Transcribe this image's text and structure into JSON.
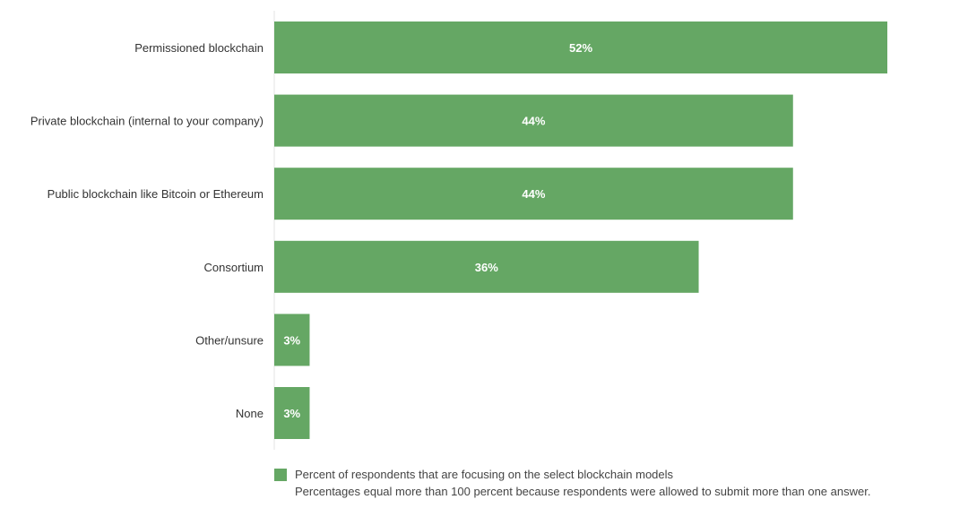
{
  "chart_data": {
    "type": "bar",
    "orientation": "horizontal",
    "categories": [
      "Permissioned blockchain",
      "Private blockchain (internal to your company)",
      "Public blockchain like Bitcoin or Ethereum",
      "Consortium",
      "Other/unsure",
      "None"
    ],
    "values": [
      52,
      44,
      44,
      36,
      3,
      3
    ],
    "data_labels": [
      "52%",
      "44%",
      "44%",
      "36%",
      "3%",
      "3%"
    ],
    "unit": "%",
    "xlim": [
      0,
      60
    ],
    "grid": false,
    "legend_position": "bottom",
    "title": "",
    "xlabel": "",
    "ylabel": ""
  },
  "colors": {
    "bar": "#65a764",
    "category_text": "#333333",
    "value_text": "#ffffff",
    "axis_line": "#e3e3e3"
  },
  "legend": {
    "series_label": "Percent of respondents that are focusing on the select blockchain models",
    "note": "Percentages equal more than 100 percent because respondents were allowed to submit more than one answer."
  }
}
